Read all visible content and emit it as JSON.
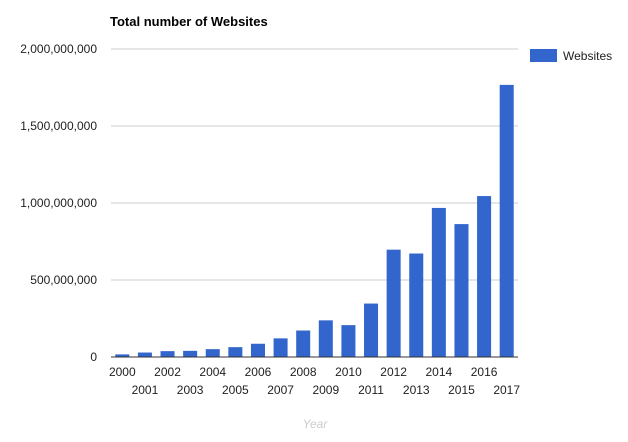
{
  "chart_data": {
    "type": "bar",
    "title": "Total number of Websites",
    "xlabel": "Year",
    "ylabel": "",
    "categories": [
      "2000",
      "2001",
      "2002",
      "2003",
      "2004",
      "2005",
      "2006",
      "2007",
      "2008",
      "2009",
      "2010",
      "2011",
      "2012",
      "2013",
      "2014",
      "2015",
      "2016",
      "2017"
    ],
    "series": [
      {
        "name": "Websites",
        "color": "#3366cc",
        "values": [
          17000000,
          29000000,
          38000000,
          40000000,
          51000000,
          64000000,
          86000000,
          121000000,
          172000000,
          238000000,
          207000000,
          347000000,
          697000000,
          672000000,
          968000000,
          863000000,
          1045000000,
          1767000000
        ]
      }
    ],
    "yticks": [
      0,
      500000000,
      1000000000,
      1500000000,
      2000000000
    ],
    "ytick_labels": [
      "0",
      "500,000,000",
      "1,000,000,000",
      "1,500,000,000",
      "2,000,000,000"
    ],
    "ylim": [
      0,
      2000000000
    ],
    "grid": true,
    "legend_position": "right"
  }
}
